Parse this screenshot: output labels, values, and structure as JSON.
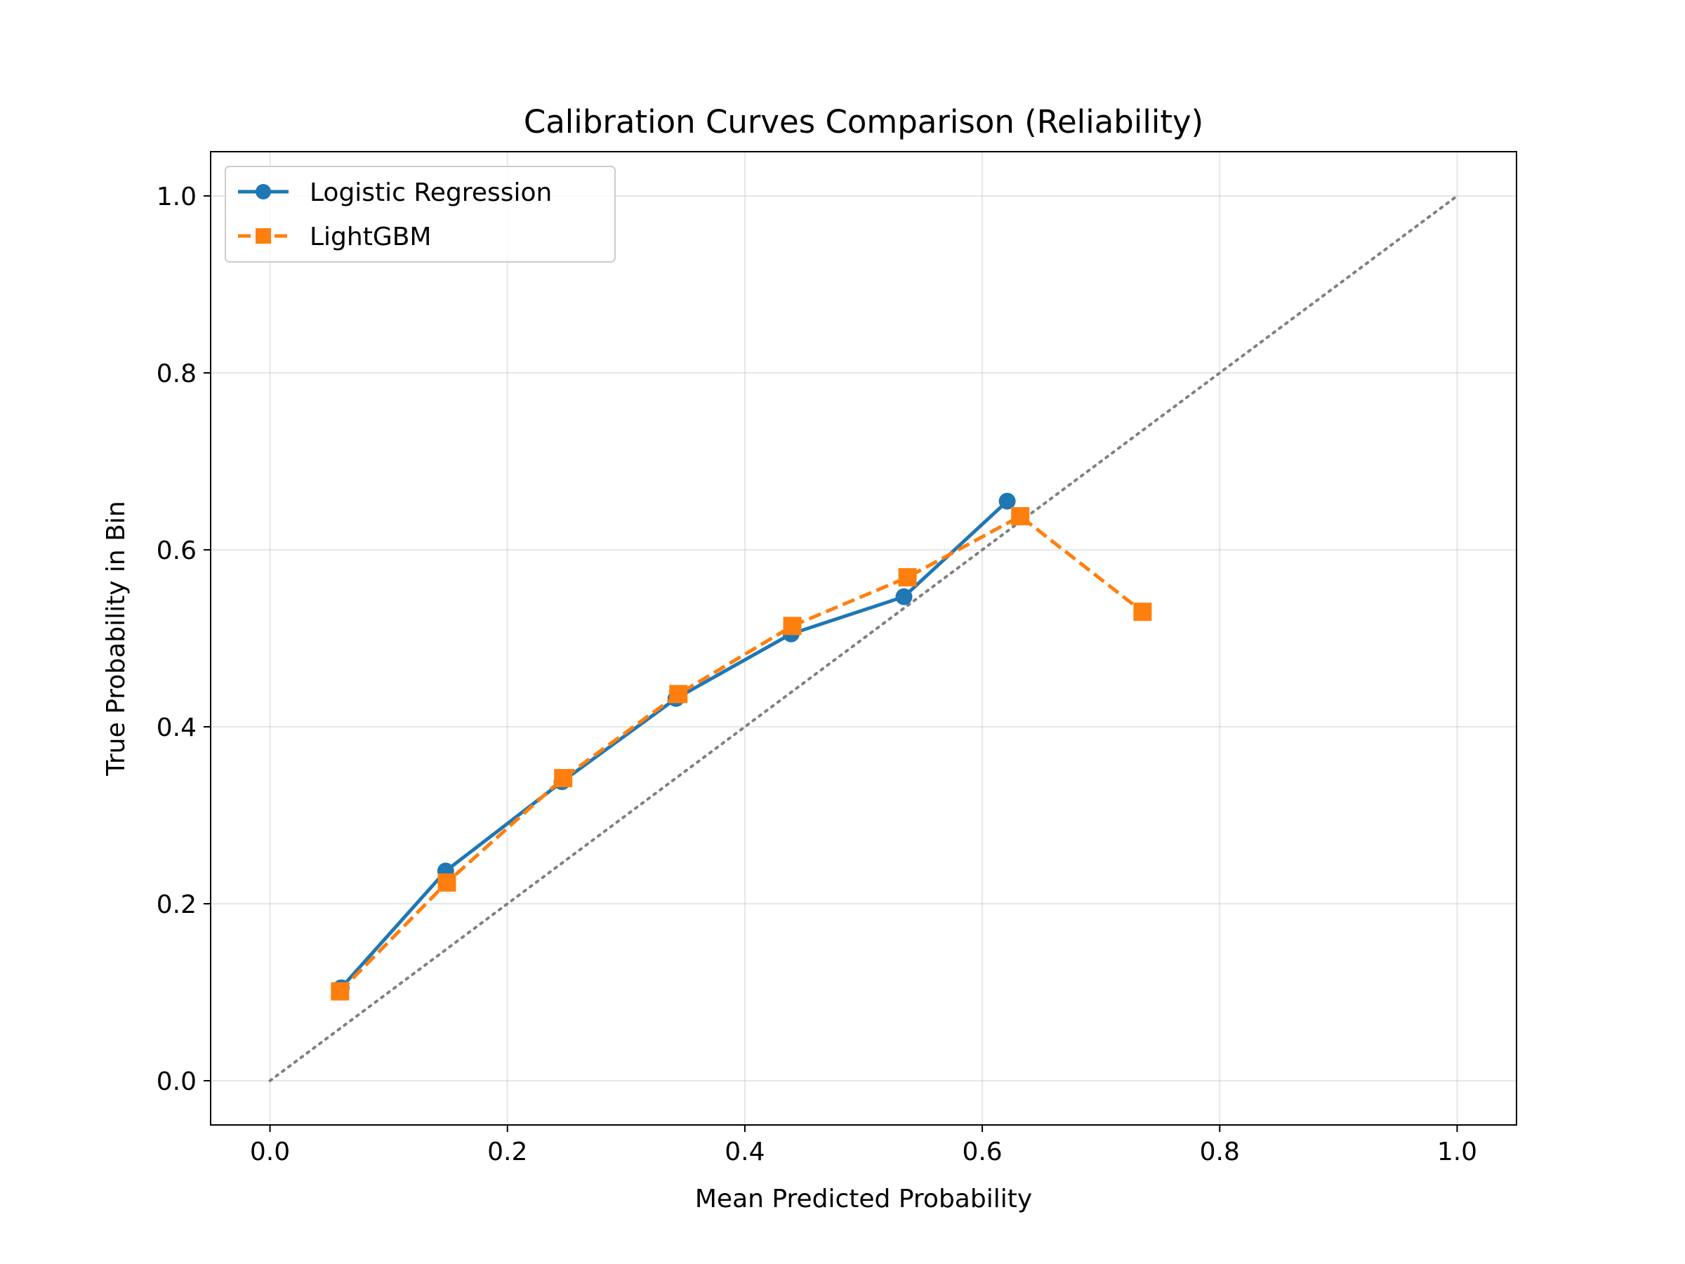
{
  "chart_data": {
    "type": "line",
    "title": "Calibration Curves Comparison (Reliability)",
    "xlabel": "Mean Predicted Probability",
    "ylabel": "True Probability in Bin",
    "xlim": [
      -0.05,
      1.05
    ],
    "ylim": [
      -0.05,
      1.05
    ],
    "xticks": [
      "0.0",
      "0.2",
      "0.4",
      "0.6",
      "0.8",
      "1.0"
    ],
    "yticks": [
      "0.0",
      "0.2",
      "0.4",
      "0.6",
      "0.8",
      "1.0"
    ],
    "grid": true,
    "legend_position": "upper-left",
    "reference_line": {
      "x": [
        0,
        1
      ],
      "y": [
        0,
        1
      ],
      "color": "#808080",
      "style": "dotted"
    },
    "series": [
      {
        "name": "Logistic Regression",
        "color": "#1f77b4",
        "marker": "circle",
        "linestyle": "solid",
        "x": [
          0.06,
          0.148,
          0.246,
          0.342,
          0.439,
          0.534,
          0.621
        ],
        "y": [
          0.105,
          0.237,
          0.338,
          0.432,
          0.505,
          0.547,
          0.655
        ]
      },
      {
        "name": "LightGBM",
        "color": "#ff7f0e",
        "marker": "square",
        "linestyle": "dashed",
        "x": [
          0.059,
          0.149,
          0.247,
          0.344,
          0.44,
          0.537,
          0.632,
          0.735
        ],
        "y": [
          0.101,
          0.224,
          0.342,
          0.437,
          0.514,
          0.569,
          0.638,
          0.53
        ]
      }
    ]
  }
}
